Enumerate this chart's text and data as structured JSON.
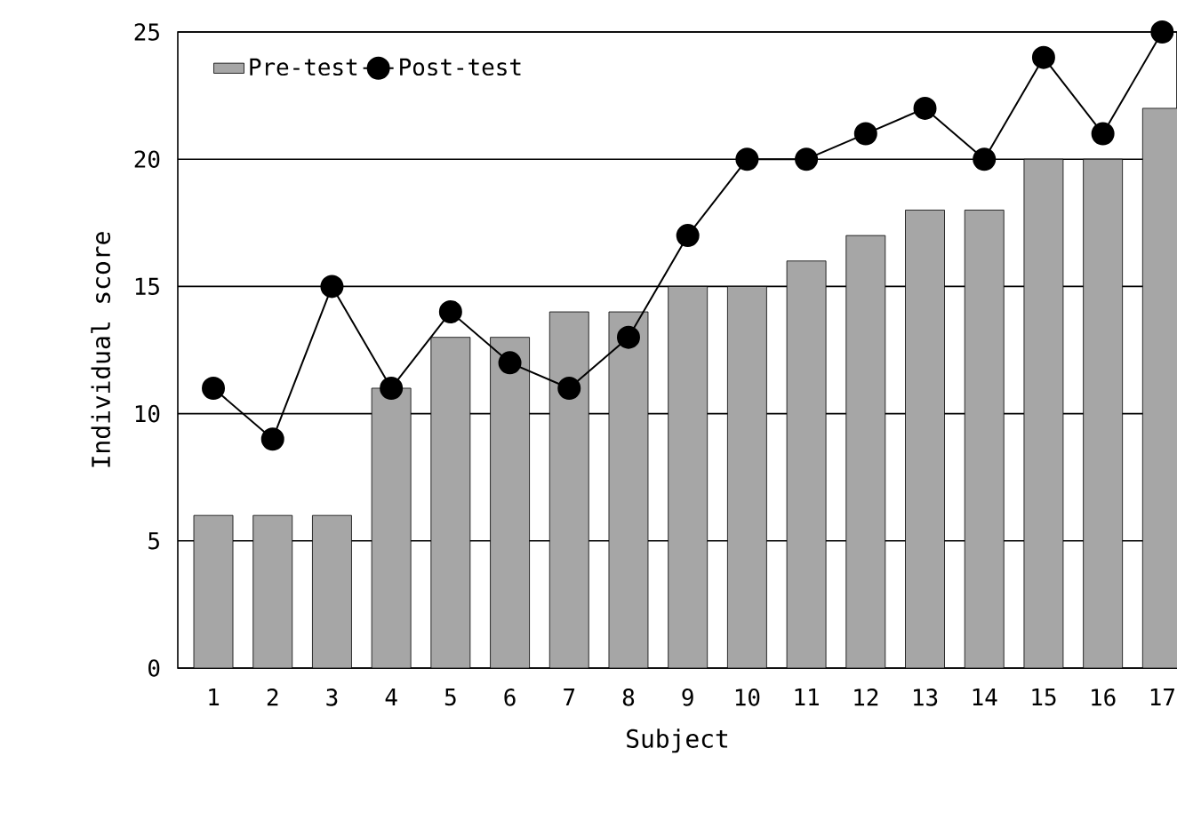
{
  "chart_data": {
    "type": "bar",
    "xlabel": "Subject",
    "ylabel": "Individual score",
    "categories": [
      "1",
      "2",
      "3",
      "4",
      "5",
      "6",
      "7",
      "8",
      "9",
      "10",
      "11",
      "12",
      "13",
      "14",
      "15",
      "16",
      "17"
    ],
    "series": [
      {
        "name": "Pre-test",
        "color": "#a6a6a6",
        "values": [
          6,
          6,
          6,
          11,
          13,
          13,
          14,
          14,
          15,
          15,
          16,
          17,
          18,
          18,
          20,
          20,
          22
        ]
      },
      {
        "name": "Post-test",
        "type": "line",
        "color": "#000000",
        "values": [
          11,
          9,
          15,
          11,
          14,
          12,
          11,
          13,
          17,
          20,
          20,
          21,
          22,
          20,
          24,
          21,
          25
        ]
      }
    ],
    "ylim": [
      0,
      25
    ],
    "yticks": [
      0,
      5,
      10,
      15,
      20,
      25
    ],
    "grid": "y",
    "legend": "top left",
    "marker": "circle"
  }
}
